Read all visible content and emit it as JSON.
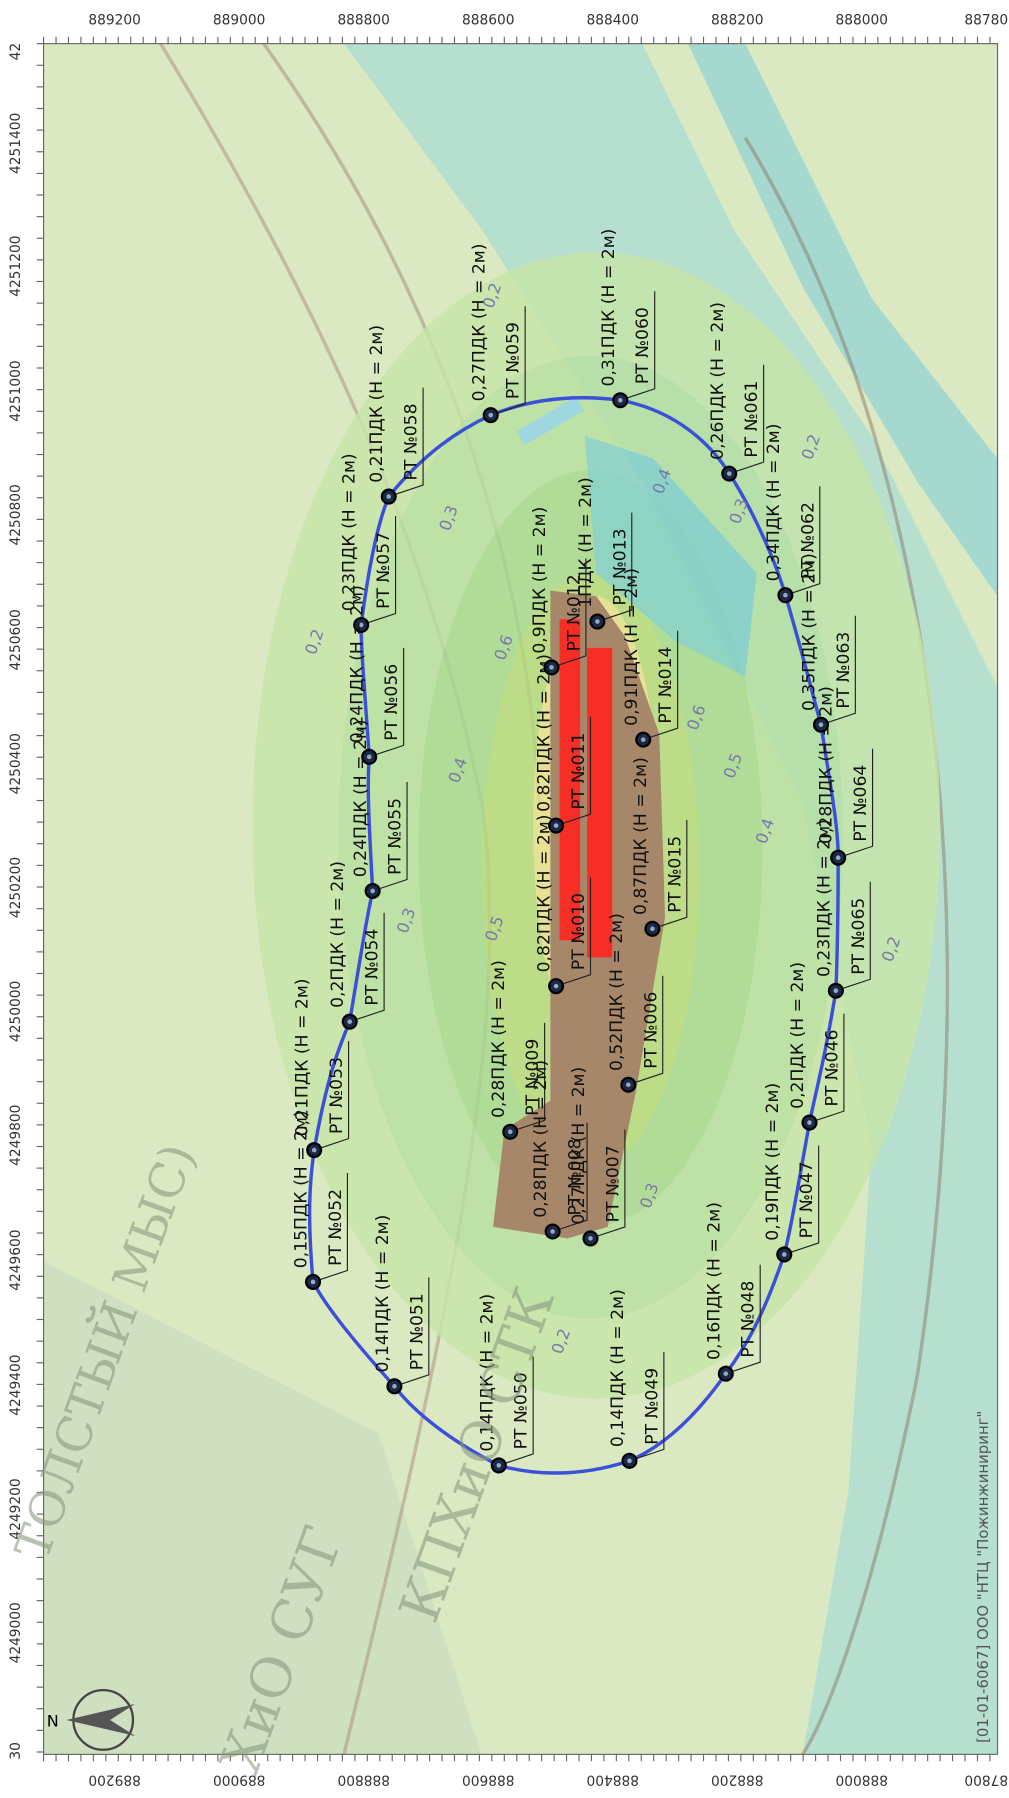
{
  "map": {
    "axis_top": [
      "889200",
      "889000",
      "888800",
      "888600",
      "888400",
      "888200",
      "888000",
      "88780"
    ],
    "axis_bottom": [
      "889200",
      "889000",
      "888800",
      "888600",
      "888400",
      "888200",
      "888000",
      "87800"
    ],
    "axis_left": [
      "42",
      "4251400",
      "4251200",
      "4251000",
      "4250800",
      "4250600",
      "4250400",
      "4250200",
      "4250000",
      "4249800",
      "4249600",
      "4249400",
      "4249200",
      "4249000",
      "30"
    ],
    "points": [
      {
        "name": "РТ №060",
        "value": "0,31ПДК (Н = 2м)"
      },
      {
        "name": "РТ №059",
        "value": "0,27ПДК (Н = 2м)"
      },
      {
        "name": "РТ №058",
        "value": "0,21ПДК (Н = 2м)"
      },
      {
        "name": "РТ №057",
        "value": "0,23ПДК (Н = 2м)"
      },
      {
        "name": "РТ №056",
        "value": "0,24ПДК (Н = 2м)"
      },
      {
        "name": "РТ №055",
        "value": "0,24ПДК (Н = 2м)"
      },
      {
        "name": "РТ №054",
        "value": "0,2ПДК (Н = 2м)"
      },
      {
        "name": "РТ №053",
        "value": "0,21ПДК (Н = 2м)"
      },
      {
        "name": "РТ №052",
        "value": "0,15ПДК (Н = 2м)"
      },
      {
        "name": "РТ №051",
        "value": "0,14ПДК (Н = 2м)"
      },
      {
        "name": "РТ №050",
        "value": "0,14ПДК (Н = 2м)"
      },
      {
        "name": "РТ №049",
        "value": "0,14ПДК (Н = 2м)"
      },
      {
        "name": "РТ №048",
        "value": "0,16ПДК (Н = 2м)"
      },
      {
        "name": "РТ №047",
        "value": "0,19ПДК (Н = 2м)"
      },
      {
        "name": "РТ №046",
        "value": "0,2ПДК (Н = 2м)"
      },
      {
        "name": "РТ №065",
        "value": "0,23ПДК (Н = 2м)"
      },
      {
        "name": "РТ №064",
        "value": "0,28ПДК (Н = 2м)"
      },
      {
        "name": "РТ №063",
        "value": "0,35ПДК (Н = 2м)"
      },
      {
        "name": "РТ №062",
        "value": "0,34ПДК (Н = 2м)"
      },
      {
        "name": "РТ №061",
        "value": "0,26ПДК (Н = 2м)"
      },
      {
        "name": "РТ №013",
        "value": "1ПДК (Н = 2м)"
      },
      {
        "name": "РТ №012",
        "value": "0,9ПДК (Н = 2м)"
      },
      {
        "name": "РТ №014",
        "value": "0,91ПДК (Н = 2м)"
      },
      {
        "name": "РТ №011",
        "value": "0,82ПДК (Н = 2м)"
      },
      {
        "name": "РТ №015",
        "value": "0,87ПДК (Н = 2м)"
      },
      {
        "name": "РТ №010",
        "value": "0,82ПДК (Н = 2м)"
      },
      {
        "name": "РТ №006",
        "value": "0,52ПДК (Н = 2м)"
      },
      {
        "name": "РТ №009",
        "value": "0,28ПДК (Н = 2м)"
      },
      {
        "name": "РТ №008",
        "value": "0,28ПДК (Н = 2м)"
      },
      {
        "name": "РТ №007",
        "value": "0,27ПДК (Н = 2м)"
      }
    ],
    "contour_labels": [
      "0,2",
      "0,2",
      "0,4",
      "0,3",
      "0,3",
      "0,2",
      "0,6",
      "0,6",
      "0,5",
      "0,4",
      "0,4",
      "0,3",
      "0,5",
      "0,2",
      "0,3",
      "0,2"
    ],
    "area_labels": [
      "ТОЛСТЫЙ МЫС)",
      "ХиО СУГ",
      "КПХиО СТК"
    ],
    "north": "N",
    "credit": "[01-01-6067] ООО \"НТЦ \"Пожинжиниринг\""
  }
}
